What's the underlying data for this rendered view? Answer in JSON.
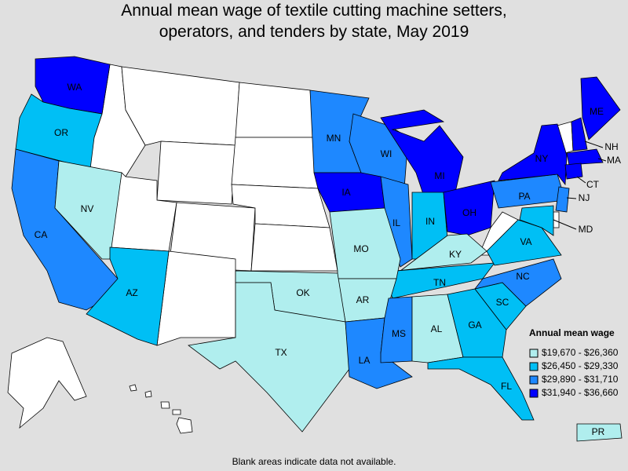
{
  "title_lines": [
    "Annual mean wage of textile cutting machine setters,",
    "operators, and tenders by state, May 2019"
  ],
  "legend": {
    "title": "Annual mean wage",
    "items": [
      {
        "label": "$19,670 - $26,360",
        "color": "#b0eeee"
      },
      {
        "label": "$26,450 - $29,330",
        "color": "#00bff5"
      },
      {
        "label": "$29,890 - $31,710",
        "color": "#1e88ff"
      },
      {
        "label": "$31,940 - $36,660",
        "color": "#0000ff"
      }
    ]
  },
  "states": [
    {
      "label": "WA",
      "color": "#0000ff"
    },
    {
      "label": "OR",
      "color": "#00bff5"
    },
    {
      "label": "CA",
      "color": "#1e88ff"
    },
    {
      "label": "NV",
      "color": "#b0eeee"
    },
    {
      "label": "AZ",
      "color": "#00bff5"
    },
    {
      "label": "MN",
      "color": "#1e88ff"
    },
    {
      "label": "WI",
      "color": "#1e88ff"
    },
    {
      "label": "IA",
      "color": "#0000ff"
    },
    {
      "label": "IL",
      "color": "#1e88ff"
    },
    {
      "label": "MI",
      "color": "#0000ff"
    },
    {
      "label": "IN",
      "color": "#00bff5"
    },
    {
      "label": "OH",
      "color": "#0000ff"
    },
    {
      "label": "KY",
      "color": "#b0eeee"
    },
    {
      "label": "TN",
      "color": "#00bff5"
    },
    {
      "label": "MO",
      "color": "#b0eeee"
    },
    {
      "label": "AR",
      "color": "#b0eeee"
    },
    {
      "label": "OK",
      "color": "#b0eeee"
    },
    {
      "label": "TX",
      "color": "#b0eeee"
    },
    {
      "label": "LA",
      "color": "#1e88ff"
    },
    {
      "label": "MS",
      "color": "#1e88ff"
    },
    {
      "label": "AL",
      "color": "#b0eeee"
    },
    {
      "label": "GA",
      "color": "#00bff5"
    },
    {
      "label": "FL",
      "color": "#00bff5"
    },
    {
      "label": "SC",
      "color": "#00bff5"
    },
    {
      "label": "NC",
      "color": "#1e88ff"
    },
    {
      "label": "VA",
      "color": "#00bff5"
    },
    {
      "label": "PA",
      "color": "#1e88ff"
    },
    {
      "label": "NY",
      "color": "#0000ff"
    },
    {
      "label": "ME",
      "color": "#0000ff"
    },
    {
      "label": "NH",
      "color": "#0000ff"
    },
    {
      "label": "MA",
      "color": "#0000ff"
    },
    {
      "label": "CT",
      "color": "#0000ff"
    },
    {
      "label": "NJ",
      "color": "#1e88ff"
    },
    {
      "label": "MD",
      "color": "#00bff5"
    },
    {
      "label": "PR",
      "color": "#b0eeee"
    }
  ],
  "footnote": "Blank areas indicate data not available."
}
